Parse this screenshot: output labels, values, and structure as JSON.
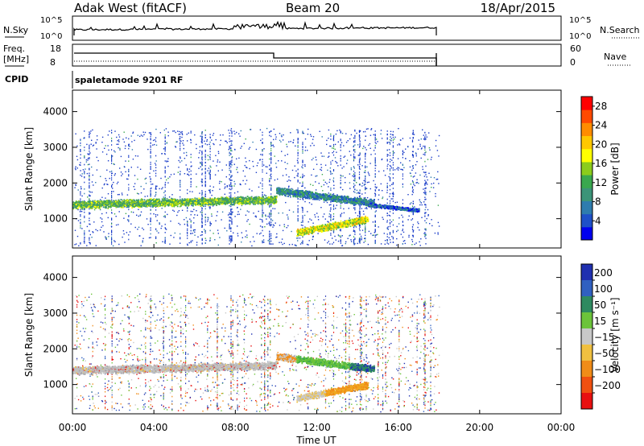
{
  "header": {
    "station": "Adak West (fitACF)",
    "beam": "Beam 20",
    "date": "18/Apr/2015"
  },
  "noise_panel": {
    "left_label": "N.Sky",
    "left_ticks": [
      "10^5",
      "10^0"
    ],
    "right_label": "N.Search",
    "right_ticks": [
      "10^5",
      "10^0"
    ]
  },
  "freq_panel": {
    "left_label": "Freq.",
    "left_unit": "[MHz]",
    "left_ticks": [
      "18",
      "8"
    ],
    "right_label": "Nave",
    "right_ticks": [
      "60",
      "0"
    ]
  },
  "cpid": {
    "label": "CPID",
    "mode": "spaletamode 9201 RF"
  },
  "time_axis": {
    "label": "Time UT",
    "ticks": [
      "00:00",
      "04:00",
      "08:00",
      "12:00",
      "16:00",
      "20:00",
      "00:00"
    ]
  },
  "chart_data": [
    {
      "type": "heatmap",
      "name": "power",
      "ylabel": "Slant Range [km]",
      "yticks": [
        1000,
        2000,
        3000,
        4000
      ],
      "ylim": [
        180,
        4600
      ],
      "xlim_hours": [
        0,
        24
      ],
      "data_end_hour": 18,
      "colorbar_label": "Power [dB]",
      "colorbar_ticks": [
        4,
        8,
        12,
        16,
        20,
        24,
        28
      ],
      "colorbar_range": [
        0,
        30
      ],
      "colorbar_colors": [
        "#0000ee",
        "#1e50c8",
        "#2e7cae",
        "#3c9478",
        "#3aa84e",
        "#8ccc1c",
        "#ffff00",
        "#ffc800",
        "#ff8c00",
        "#ff4a00",
        "#ff0000"
      ],
      "features": [
        {
          "kind": "band",
          "hours": [
            0,
            10
          ],
          "range_km": [
            1400,
            1550
          ],
          "width_km": 180,
          "level": 13
        },
        {
          "kind": "band",
          "hours": [
            10,
            14.8
          ],
          "range_km": [
            1800,
            1450
          ],
          "width_km": 160,
          "level": 8
        },
        {
          "kind": "band",
          "hours": [
            11,
            14.5
          ],
          "range_km": [
            620,
            1000
          ],
          "width_km": 160,
          "level": 17
        },
        {
          "kind": "band",
          "hours": [
            14.5,
            17
          ],
          "range_km": [
            1400,
            1250
          ],
          "width_km": 80,
          "level": 5
        }
      ]
    },
    {
      "type": "heatmap",
      "name": "velocity",
      "ylabel": "Slant Range [km]",
      "yticks": [
        1000,
        2000,
        3000,
        4000
      ],
      "ylim": [
        180,
        4600
      ],
      "xlim_hours": [
        0,
        24
      ],
      "data_end_hour": 18,
      "colorbar_label": "Velocity [m s⁻¹]",
      "colorbar_ticks": [
        "200",
        "100",
        "50",
        "15",
        "−15",
        "−50",
        "−100",
        "−200"
      ],
      "colorbar_colors": [
        "#2030b0",
        "#3060c0",
        "#2e8a60",
        "#6cc43a",
        "#c8c8c8",
        "#f0c040",
        "#f08c18",
        "#f05010",
        "#e81010"
      ],
      "features": [
        {
          "kind": "band",
          "hours": [
            0,
            10
          ],
          "range_km": [
            1400,
            1550
          ],
          "width_km": 180,
          "level": "gray"
        },
        {
          "kind": "band",
          "hours": [
            10,
            14.8
          ],
          "range_km": [
            1800,
            1450
          ],
          "width_km": 160,
          "level": "green"
        },
        {
          "kind": "band",
          "hours": [
            11,
            14.5
          ],
          "range_km": [
            620,
            1000
          ],
          "width_km": 160,
          "level": "orange"
        }
      ]
    }
  ]
}
